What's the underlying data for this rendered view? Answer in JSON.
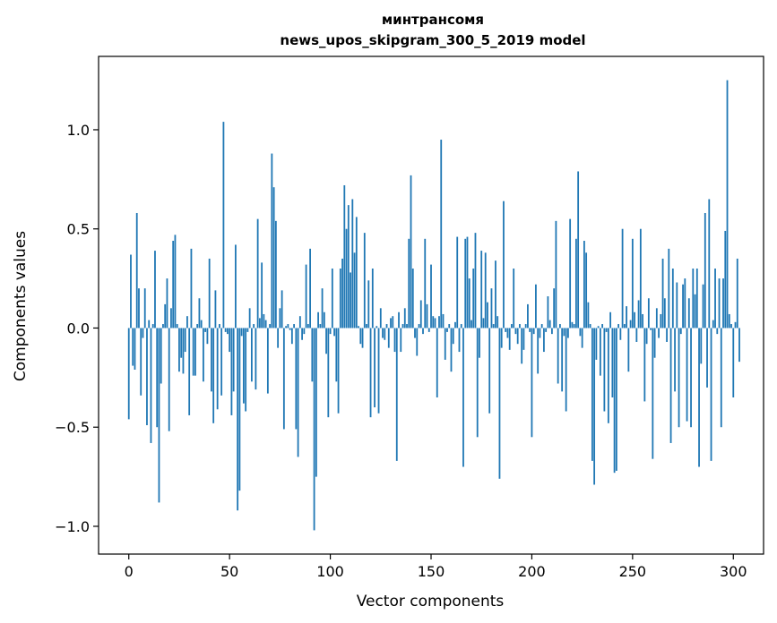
{
  "chart_data": {
    "type": "bar",
    "title": "минтрансомя",
    "subtitle": "news_upos_skipgram_300_5_2019 model",
    "xlabel": "Vector components",
    "ylabel": "Components values",
    "xlim": [
      -15,
      315
    ],
    "ylim": [
      -1.14,
      1.37
    ],
    "xticks": [
      0,
      50,
      100,
      150,
      200,
      250,
      300
    ],
    "xtick_labels": [
      "0",
      "50",
      "100",
      "150",
      "200",
      "250",
      "300"
    ],
    "yticks": [
      -1.0,
      -0.5,
      0.0,
      0.5,
      1.0
    ],
    "ytick_labels": [
      "−1.0",
      "−0.5",
      "0.0",
      "0.5",
      "1.0"
    ],
    "grid": false,
    "color": "#1f77b4",
    "values": [
      -0.46,
      0.37,
      -0.19,
      -0.21,
      0.58,
      0.2,
      -0.34,
      -0.05,
      0.2,
      -0.49,
      0.04,
      -0.58,
      0.02,
      0.39,
      -0.5,
      -0.88,
      -0.28,
      0.02,
      0.12,
      0.25,
      -0.52,
      0.1,
      0.44,
      0.47,
      0.02,
      -0.22,
      -0.15,
      -0.23,
      -0.12,
      0.06,
      -0.44,
      0.4,
      -0.24,
      -0.24,
      0.02,
      0.15,
      0.04,
      -0.27,
      -0.02,
      -0.08,
      0.35,
      -0.32,
      -0.48,
      0.19,
      -0.41,
      0.02,
      -0.34,
      1.04,
      -0.02,
      -0.03,
      -0.12,
      -0.44,
      -0.32,
      0.42,
      -0.92,
      -0.82,
      -0.04,
      -0.38,
      -0.42,
      -0.02,
      0.1,
      -0.27,
      0.02,
      -0.31,
      0.55,
      0.05,
      0.33,
      0.07,
      0.04,
      -0.33,
      0.02,
      0.88,
      0.71,
      0.54,
      -0.1,
      0.1,
      0.19,
      -0.51,
      0.01,
      0.02,
      -0.01,
      -0.08,
      0.02,
      -0.51,
      -0.65,
      0.06,
      -0.06,
      -0.03,
      0.32,
      0.02,
      0.4,
      -0.27,
      -1.02,
      -0.75,
      0.08,
      0.02,
      0.2,
      0.08,
      -0.13,
      -0.45,
      -0.03,
      0.3,
      -0.04,
      -0.27,
      -0.43,
      0.3,
      0.35,
      0.72,
      0.5,
      0.62,
      0.28,
      0.65,
      0.38,
      0.56,
      0.01,
      -0.08,
      -0.1,
      0.48,
      0.02,
      0.24,
      -0.45,
      0.3,
      -0.4,
      0.01,
      -0.43,
      0.1,
      -0.05,
      -0.06,
      0.02,
      -0.1,
      0.05,
      0.06,
      -0.12,
      -0.67,
      0.08,
      -0.12,
      0.02,
      0.1,
      0.02,
      0.45,
      0.77,
      0.3,
      -0.05,
      -0.14,
      0.02,
      0.14,
      -0.03,
      0.45,
      0.12,
      -0.02,
      0.32,
      0.06,
      0.05,
      -0.35,
      0.06,
      0.95,
      0.07,
      -0.16,
      -0.02,
      0.02,
      -0.22,
      -0.08,
      0.03,
      0.46,
      -0.12,
      0.02,
      -0.7,
      0.45,
      0.46,
      0.25,
      0.04,
      0.3,
      0.48,
      -0.55,
      -0.15,
      0.39,
      0.05,
      0.38,
      0.13,
      -0.43,
      0.2,
      0.02,
      0.34,
      0.06,
      -0.76,
      -0.1,
      0.64,
      -0.02,
      -0.05,
      -0.11,
      0.02,
      0.3,
      -0.03,
      -0.08,
      0.02,
      -0.18,
      -0.11,
      0.02,
      0.12,
      -0.02,
      -0.55,
      -0.03,
      0.22,
      -0.23,
      -0.05,
      0.02,
      -0.12,
      -0.02,
      0.16,
      0.04,
      -0.03,
      0.2,
      0.54,
      -0.28,
      0.02,
      -0.32,
      -0.04,
      -0.42,
      -0.05,
      0.55,
      0.03,
      0.02,
      0.45,
      0.79,
      -0.04,
      -0.1,
      0.44,
      0.38,
      0.13,
      0.02,
      -0.67,
      -0.79,
      -0.16,
      0.01,
      -0.24,
      0.02,
      -0.42,
      -0.02,
      -0.48,
      0.08,
      -0.35,
      -0.73,
      -0.72,
      0.02,
      -0.06,
      0.5,
      0.02,
      0.11,
      -0.22,
      0.04,
      0.45,
      0.08,
      -0.07,
      0.14,
      0.5,
      0.07,
      -0.37,
      -0.08,
      0.15,
      -0.01,
      -0.66,
      -0.15,
      0.1,
      -0.05,
      0.07,
      0.35,
      0.15,
      -0.07,
      0.4,
      -0.58,
      0.3,
      -0.32,
      0.23,
      -0.5,
      -0.03,
      0.22,
      0.25,
      -0.47,
      0.15,
      -0.5,
      0.3,
      0.17,
      0.3,
      -0.7,
      -0.18,
      0.22,
      0.58,
      -0.3,
      0.65,
      -0.67,
      0.04,
      0.3,
      -0.03,
      0.25,
      -0.5,
      0.25,
      0.49,
      1.25,
      0.07,
      0.02,
      -0.35,
      0.03,
      0.35,
      -0.17
    ]
  }
}
